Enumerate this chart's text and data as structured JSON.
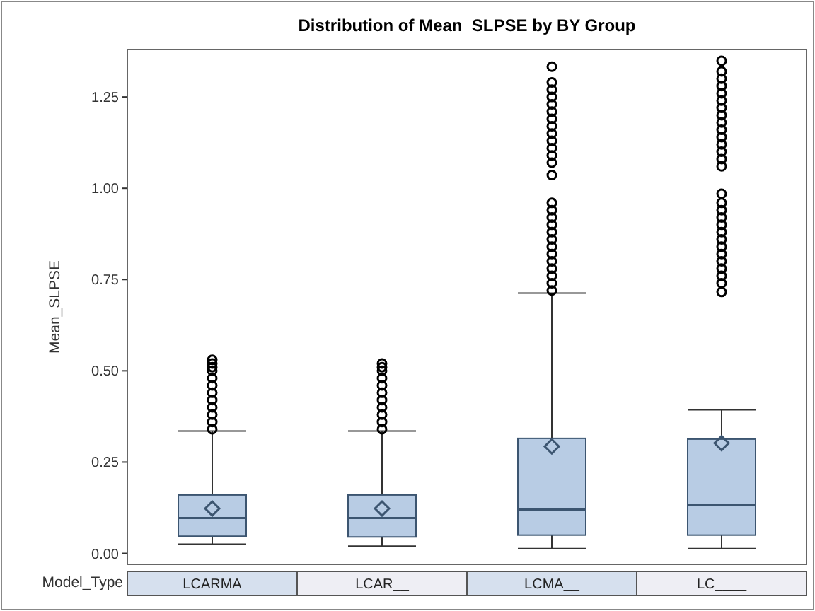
{
  "chart_data": {
    "type": "box",
    "title": "Distribution of Mean_SLPSE by BY Group",
    "ylabel": "Mean_SLPSE",
    "xlabel": "Model_Type",
    "categories": [
      "LCARMA",
      "LCAR__",
      "LCMA__",
      "LC____"
    ],
    "color": "#b8cce4",
    "boxes": [
      {
        "low": 0.025,
        "q1": 0.047,
        "median": 0.097,
        "q3": 0.16,
        "high": 0.335,
        "mean": 0.123,
        "outliers": [
          0.34,
          0.36,
          0.38,
          0.4,
          0.42,
          0.44,
          0.46,
          0.48,
          0.5,
          0.51,
          0.52,
          0.53
        ]
      },
      {
        "low": 0.02,
        "q1": 0.045,
        "median": 0.097,
        "q3": 0.16,
        "high": 0.335,
        "mean": 0.123,
        "outliers": [
          0.34,
          0.36,
          0.38,
          0.4,
          0.42,
          0.44,
          0.46,
          0.48,
          0.5,
          0.51,
          0.52
        ]
      },
      {
        "low": 0.013,
        "q1": 0.05,
        "median": 0.12,
        "q3": 0.315,
        "high": 0.713,
        "mean": 0.293,
        "outliers": [
          0.72,
          0.74,
          0.76,
          0.78,
          0.8,
          0.82,
          0.84,
          0.86,
          0.88,
          0.9,
          0.92,
          0.94,
          0.96,
          1.036,
          1.07,
          1.09,
          1.11,
          1.13,
          1.15,
          1.17,
          1.19,
          1.21,
          1.23,
          1.25,
          1.27,
          1.29,
          1.333
        ]
      },
      {
        "low": 0.013,
        "q1": 0.05,
        "median": 0.132,
        "q3": 0.313,
        "high": 0.393,
        "mean": 0.302,
        "outliers": [
          0.716,
          0.74,
          0.76,
          0.78,
          0.8,
          0.82,
          0.84,
          0.86,
          0.88,
          0.9,
          0.92,
          0.94,
          0.96,
          0.985,
          1.06,
          1.08,
          1.1,
          1.12,
          1.14,
          1.16,
          1.18,
          1.2,
          1.22,
          1.24,
          1.26,
          1.28,
          1.3,
          1.32,
          1.349
        ]
      }
    ],
    "ylim": [
      -0.03,
      1.38
    ],
    "yticks": [
      {
        "value": 0,
        "label": "0.00"
      },
      {
        "value": 0.25,
        "label": "0.25"
      },
      {
        "value": 0.5,
        "label": "0.50"
      },
      {
        "value": 0.75,
        "label": "0.75"
      },
      {
        "value": 1,
        "label": "1.00"
      },
      {
        "value": 1.25,
        "label": "1.25"
      }
    ],
    "grid": false,
    "marker": "circle"
  }
}
